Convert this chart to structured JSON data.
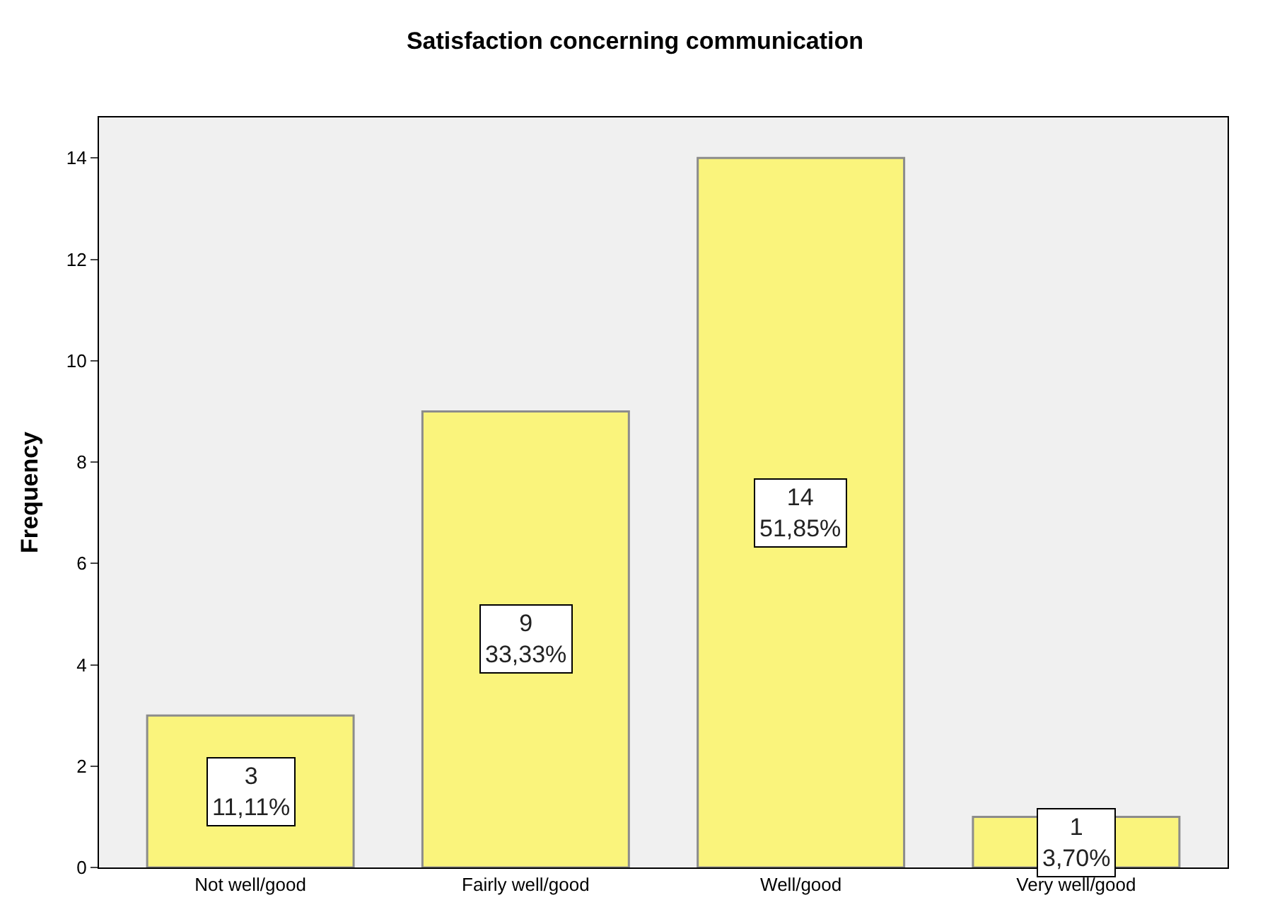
{
  "chart_data": {
    "type": "bar",
    "title": "Satisfaction concerning communication",
    "ylabel": "Frequency",
    "categories": [
      "Not well/good",
      "Fairly well/good",
      "Well/good",
      "Very well/good"
    ],
    "values": [
      3,
      9,
      14,
      1
    ],
    "value_labels": [
      "3\n11,11%",
      "9\n33,33%",
      "14\n51,85%",
      "1\n3,70%"
    ],
    "color": "#faf47c",
    "ylim": [
      0,
      14.8
    ],
    "yticks": [
      0,
      2,
      4,
      6,
      8,
      10,
      12,
      14
    ],
    "grid": false,
    "legend": false
  }
}
